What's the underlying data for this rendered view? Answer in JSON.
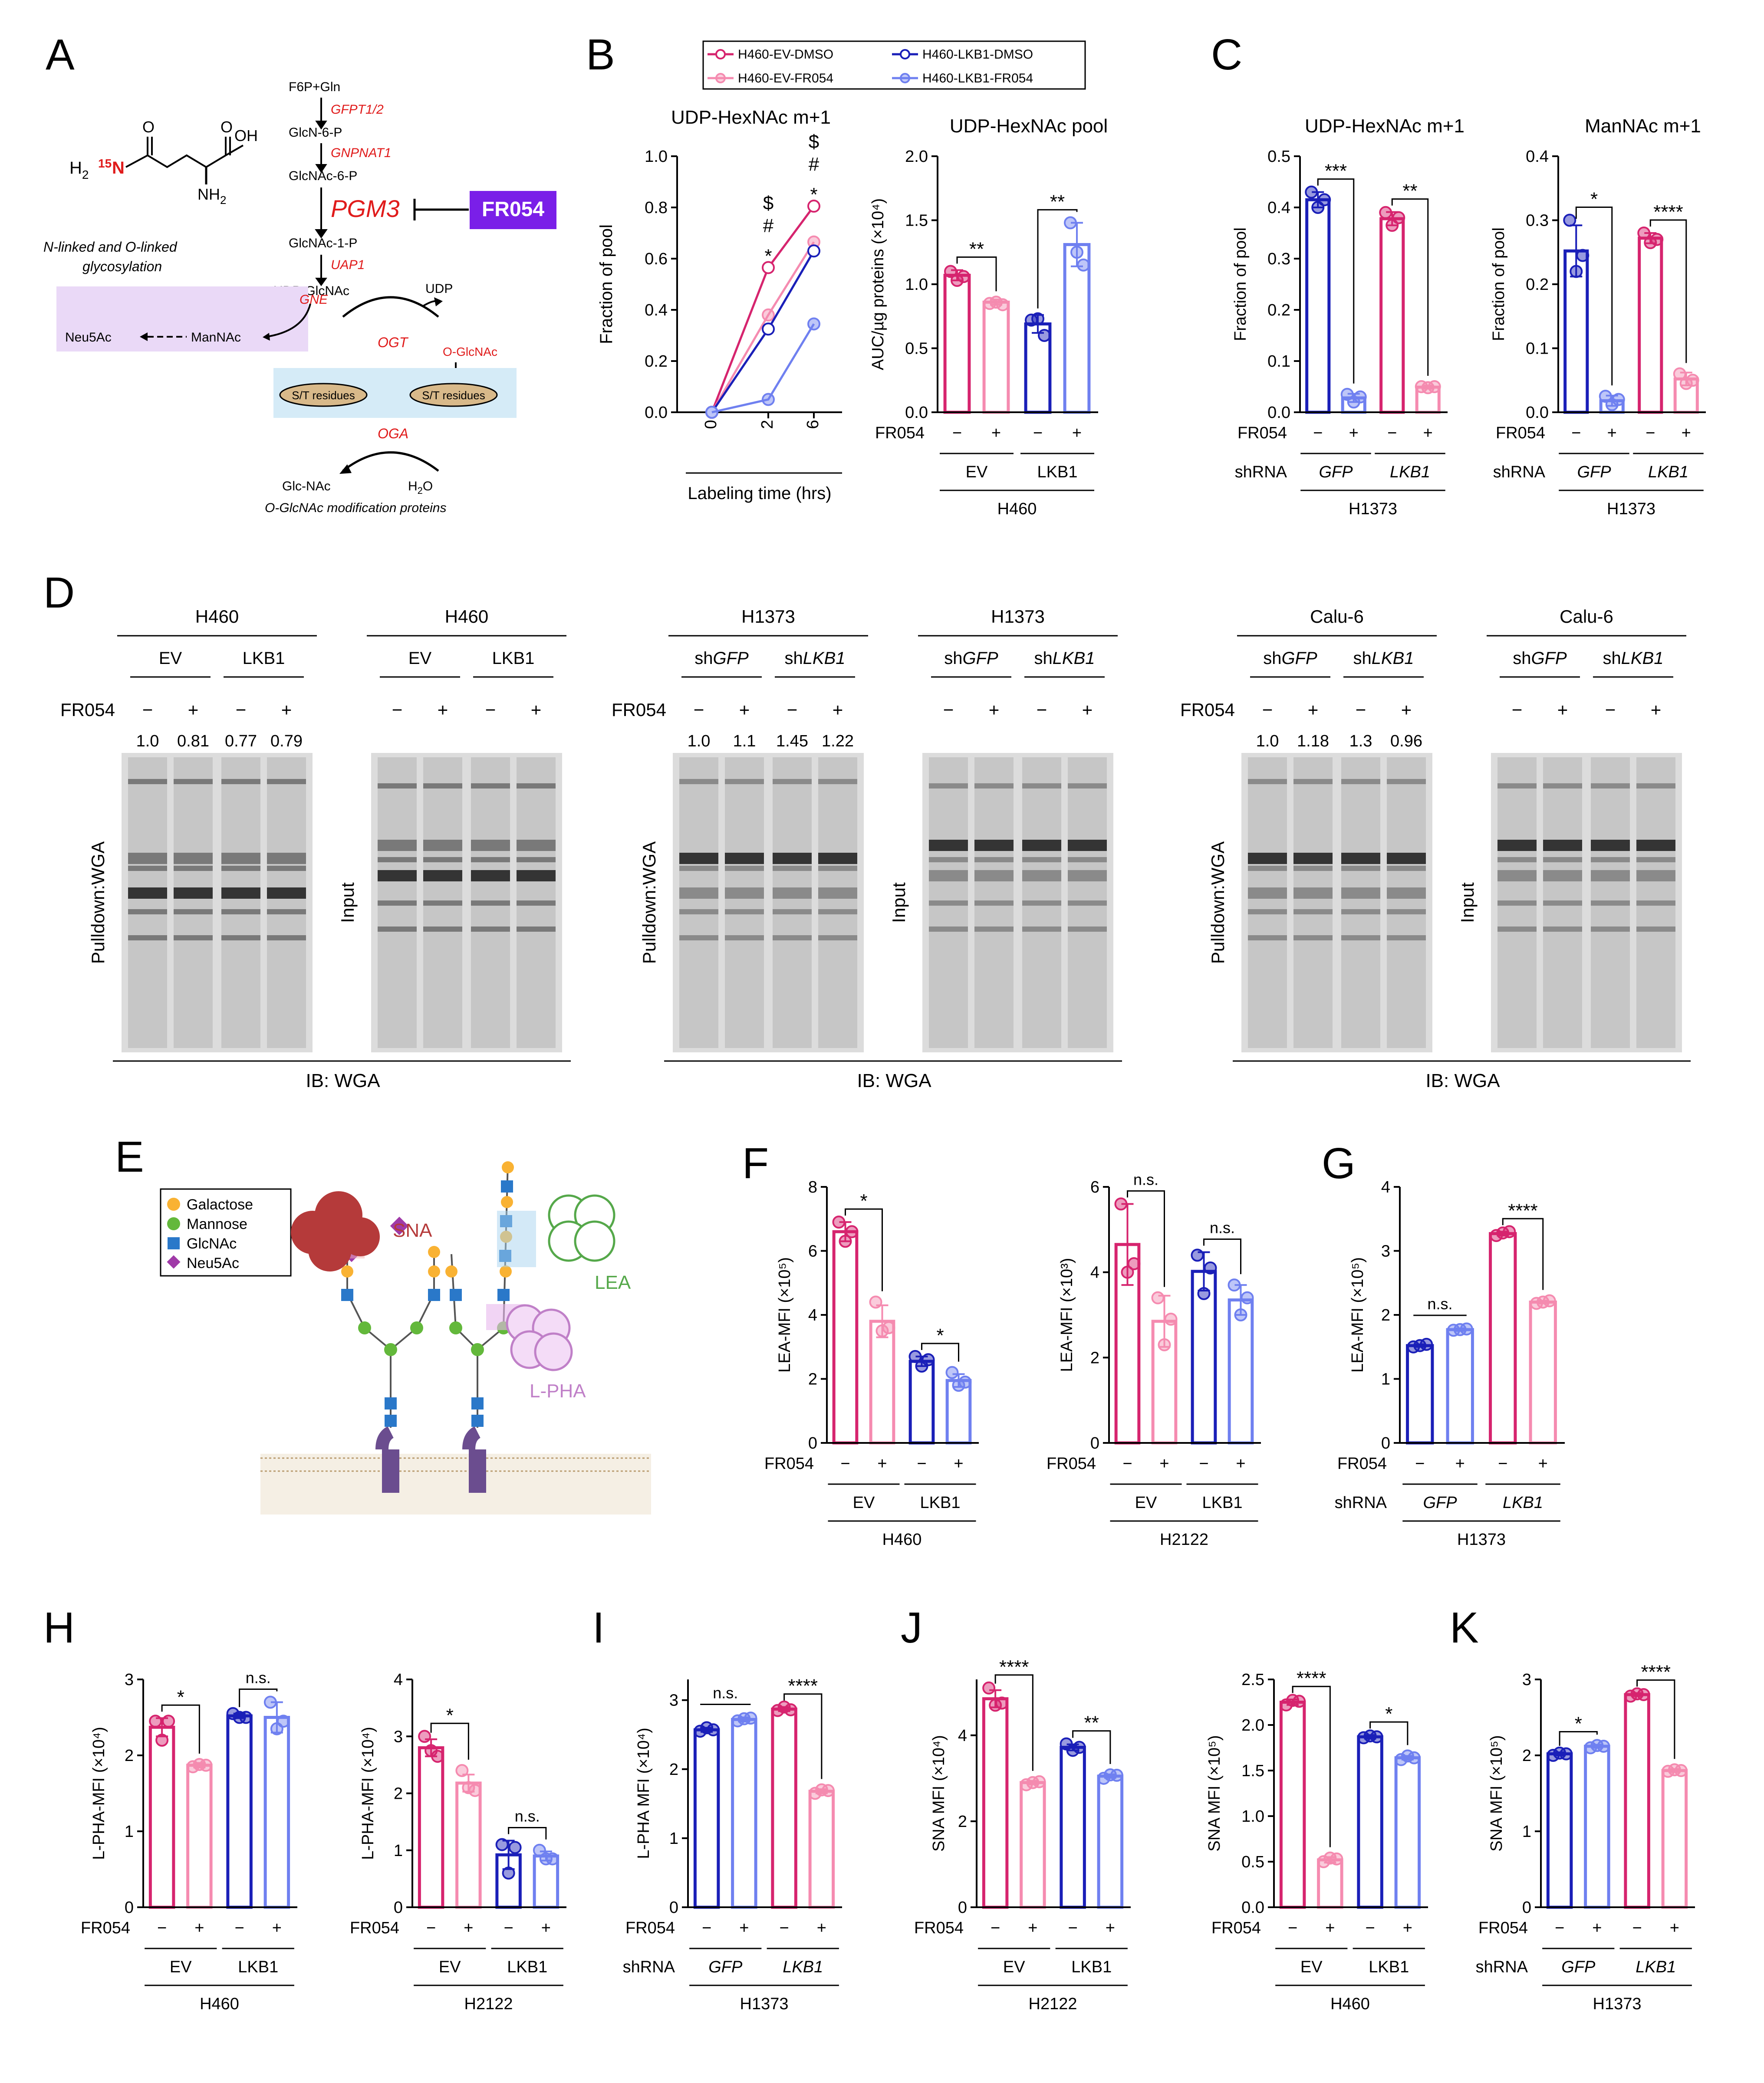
{
  "colors": {
    "dmso_ev": "#d6246e",
    "fr_ev": "#f58bb0",
    "dmso_lkb1": "#1a1fb8",
    "fr_lkb1": "#6f80f0",
    "fr054_box": "#7a1fe8",
    "pgm3": "#e01b1b",
    "enzyme": "#e01b1b",
    "box_pink": "#ead9f7",
    "box_blue": "#d5ebf7",
    "residue_fill": "#d8b98a"
  },
  "panelA": {
    "letter": "A",
    "glutamine": {
      "h2": "H",
      "sub2": "2",
      "n15": "15",
      "n": "N",
      "oh": "OH",
      "nh2": "NH",
      "nh2sub": "2",
      "o1": "O",
      "o2": "O"
    },
    "nodes": [
      "F6P+Gln",
      "GlcN-6-P",
      "GlcNAc-6-P",
      "GlcNAc-1-P",
      "UDP-GlcNAc"
    ],
    "enzymes": [
      "GFPT1/2",
      "GNPNAT1",
      "PGM3",
      "UAP1"
    ],
    "inhibitor": "FR054",
    "glyco_line1": "N-linked and O-linked",
    "glyco_line2": "glycosylation",
    "udp": "UDP",
    "gne": "GNE",
    "neu5ac": "Neu5Ac",
    "mannac": "ManNAc",
    "ogt": "OGT",
    "oga": "OGA",
    "oglcnac": "O-GlcNAc",
    "st1": "S/T residues",
    "st2": "S/T residues",
    "glcnac": "Glc-NAc",
    "h2o_h": "H",
    "h2o_2": "2",
    "h2o_o": "O",
    "footer": "O-GlcNAc modification proteins"
  },
  "panelD": {
    "letter": "D",
    "fr054": "FR054",
    "minus": "−",
    "plus": "+",
    "pulldown": "Pulldown:WGA",
    "input": "Input",
    "ib": "IB: WGA",
    "groups": [
      {
        "cell": "H460",
        "g1": "EV",
        "g2": "LKB1",
        "quant": [
          "1.0",
          "0.81",
          "0.77",
          "0.79"
        ]
      },
      {
        "cell": "H1373",
        "g1": "shGFP",
        "g2": "shLKB1",
        "g1_pre": "sh",
        "g1_it": "GFP",
        "g2_pre": "sh",
        "g2_it": "LKB1",
        "quant": [
          "1.0",
          "1.1",
          "1.45",
          "1.22"
        ]
      },
      {
        "cell": "Calu-6",
        "g1": "shGFP",
        "g2": "shLKB1",
        "g1_pre": "sh",
        "g1_it": "GFP",
        "g2_pre": "sh",
        "g2_it": "LKB1",
        "quant": [
          "1.0",
          "1.18",
          "1.3",
          "0.96"
        ]
      }
    ]
  },
  "panelE": {
    "letter": "E",
    "legend": [
      "Galactose",
      "Mannose",
      "GlcNAc",
      "Neu5Ac"
    ],
    "legend_colors": [
      "#f9b233",
      "#63b83b",
      "#2a78c9",
      "#a03aa8"
    ],
    "lectins": [
      "SNA",
      "LEA",
      "L-PHA"
    ],
    "lectin_colors": [
      "#b53a3a",
      "#55a84a",
      "#c080c8"
    ]
  },
  "chart_data": [
    {
      "panel": "B",
      "id": "B1",
      "type": "line",
      "title": "UDP-HexNAc m+1",
      "ylabel": "Fraction of pool",
      "xlabel": "Labeling time (hrs)",
      "x": [
        0,
        2,
        6
      ],
      "ylim": [
        0,
        1.0
      ],
      "yticks": [
        "0.0",
        "0.2",
        "0.4",
        "0.6",
        "0.8",
        "1.0"
      ],
      "series": [
        {
          "name": "H460-EV-DMSO",
          "values": [
            0,
            0.565,
            0.805
          ]
        },
        {
          "name": "H460-EV-FR054",
          "values": [
            0,
            0.38,
            0.665
          ]
        },
        {
          "name": "H460-LKB1-DMSO",
          "values": [
            0,
            0.325,
            0.63
          ]
        },
        {
          "name": "H460-LKB1-FR054",
          "values": [
            0,
            0.05,
            0.345
          ]
        }
      ],
      "annotations": {
        "t2": [
          "$",
          "#",
          "*"
        ],
        "t6": [
          "$",
          "#",
          "*"
        ]
      }
    },
    {
      "panel": "B",
      "id": "B2",
      "type": "bar",
      "title": "UDP-HexNAc pool",
      "ylabel": "AUC/µg proteins (×10⁴)",
      "ylim": [
        0,
        2.0
      ],
      "yticks": [
        "0.0",
        "0.5",
        "1.0",
        "1.5",
        "2.0"
      ],
      "values": [
        1.07,
        0.86,
        0.69,
        1.31
      ],
      "points": [
        [
          1.1,
          1.03,
          1.06
        ],
        [
          0.85,
          0.86,
          0.84
        ],
        [
          0.72,
          0.73,
          0.6
        ],
        [
          1.48,
          1.25,
          1.15
        ]
      ],
      "errors": [
        0.04,
        0.02,
        0.07,
        0.17
      ],
      "fr054": [
        "−",
        "+",
        "−",
        "+"
      ],
      "groups": [
        "EV",
        "LKB1"
      ],
      "cell": "H460",
      "sig": [
        "**",
        "**"
      ]
    },
    {
      "panel": "C",
      "id": "C1",
      "type": "bar",
      "title": "UDP-HexNAc m+1",
      "ylabel": "Fraction of pool",
      "ylim": [
        0,
        0.5
      ],
      "yticks": [
        "0.0",
        "0.1",
        "0.2",
        "0.3",
        "0.4",
        "0.5"
      ],
      "values": [
        0.415,
        0.028,
        0.378,
        0.049
      ],
      "points": [
        [
          0.43,
          0.4,
          0.415
        ],
        [
          0.035,
          0.02,
          0.03
        ],
        [
          0.39,
          0.365,
          0.38
        ],
        [
          0.05,
          0.048,
          0.05
        ]
      ],
      "errors": [
        0.015,
        0.008,
        0.013,
        0.003
      ],
      "fr054": [
        "−",
        "+",
        "−",
        "+"
      ],
      "shrna": [
        "GFP",
        "LKB1"
      ],
      "cell": "H1373",
      "sig": [
        "***",
        "**"
      ]
    },
    {
      "panel": "C",
      "id": "C2",
      "type": "bar",
      "title": "ManNAc m+1",
      "ylabel": "Fraction of pool",
      "ylim": [
        0,
        0.4
      ],
      "yticks": [
        "0.0",
        "0.1",
        "0.2",
        "0.3",
        "0.4"
      ],
      "values": [
        0.252,
        0.018,
        0.272,
        0.052
      ],
      "points": [
        [
          0.3,
          0.22,
          0.245
        ],
        [
          0.025,
          0.012,
          0.02
        ],
        [
          0.28,
          0.265,
          0.27
        ],
        [
          0.06,
          0.045,
          0.05
        ]
      ],
      "errors": [
        0.04,
        0.008,
        0.008,
        0.01
      ],
      "fr054": [
        "−",
        "+",
        "−",
        "+"
      ],
      "shrna": [
        "GFP",
        "LKB1"
      ],
      "cell": "H1373",
      "sig": [
        "*",
        "****"
      ]
    },
    {
      "panel": "F",
      "id": "F1",
      "type": "bar",
      "ylabel": "LEA-MFI (×10⁵)",
      "ylim": [
        0,
        8
      ],
      "yticks": [
        "0",
        "2",
        "4",
        "6",
        "8"
      ],
      "values": [
        6.6,
        3.8,
        2.55,
        1.95
      ],
      "points": [
        [
          6.9,
          6.3,
          6.6
        ],
        [
          4.4,
          3.5,
          3.6
        ],
        [
          2.7,
          2.4,
          2.6
        ],
        [
          2.2,
          1.8,
          1.9
        ]
      ],
      "errors": [
        0.3,
        0.5,
        0.15,
        0.2
      ],
      "fr054": [
        "−",
        "+",
        "−",
        "+"
      ],
      "groups": [
        "EV",
        "LKB1"
      ],
      "cell": "H460",
      "sig": [
        "*",
        "*"
      ]
    },
    {
      "panel": "F",
      "id": "F2",
      "type": "bar",
      "ylabel": "LEA-MFI (×10³)",
      "ylim": [
        0,
        6
      ],
      "yticks": [
        "0",
        "2",
        "4",
        "6"
      ],
      "values": [
        4.65,
        2.85,
        4.02,
        3.35
      ],
      "points": [
        [
          5.6,
          4.0,
          4.2
        ],
        [
          3.4,
          2.3,
          2.9
        ],
        [
          4.4,
          3.5,
          4.1
        ],
        [
          3.7,
          3.0,
          3.4
        ]
      ],
      "errors": [
        0.95,
        0.6,
        0.45,
        0.35
      ],
      "fr054": [
        "−",
        "+",
        "−",
        "+"
      ],
      "groups": [
        "EV",
        "LKB1"
      ],
      "cell": "H2122",
      "sig": [
        "n.s.",
        "n.s."
      ]
    },
    {
      "panel": "G",
      "id": "G",
      "type": "bar",
      "ylabel": "LEA-MFI (×10⁵)",
      "ylim": [
        0,
        4
      ],
      "yticks": [
        "0",
        "1",
        "2",
        "3",
        "4"
      ],
      "values": [
        1.52,
        1.77,
        3.27,
        2.2
      ],
      "points": [
        [
          1.5,
          1.52,
          1.54
        ],
        [
          1.76,
          1.77,
          1.78
        ],
        [
          3.24,
          3.28,
          3.3
        ],
        [
          2.18,
          2.2,
          2.22
        ]
      ],
      "errors": [
        0.02,
        0.02,
        0.03,
        0.02
      ],
      "fr054": [
        "−",
        "+",
        "−",
        "+"
      ],
      "shrna": [
        "GFP",
        "LKB1"
      ],
      "cell": "H1373",
      "sig": [
        "n.s.",
        "****"
      ]
    },
    {
      "panel": "H",
      "id": "H1",
      "type": "bar",
      "ylabel": "L-PHA-MFI (×10⁴)",
      "ylim": [
        0,
        3
      ],
      "yticks": [
        "0",
        "1",
        "2",
        "3"
      ],
      "values": [
        2.37,
        1.87,
        2.52,
        2.5
      ],
      "points": [
        [
          2.45,
          2.2,
          2.45
        ],
        [
          1.85,
          1.88,
          1.87
        ],
        [
          2.55,
          2.5,
          2.5
        ],
        [
          2.7,
          2.35,
          2.45
        ]
      ],
      "errors": [
        0.12,
        0.03,
        0.03,
        0.2
      ],
      "fr054": [
        "−",
        "+",
        "−",
        "+"
      ],
      "groups": [
        "EV",
        "LKB1"
      ],
      "cell": "H460",
      "sig": [
        "*",
        "n.s."
      ]
    },
    {
      "panel": "H",
      "id": "H2",
      "type": "bar",
      "ylabel": "L-PHA-MFI (×10⁴)",
      "ylim": [
        0,
        4
      ],
      "yticks": [
        "0",
        "1",
        "2",
        "3",
        "4"
      ],
      "values": [
        2.8,
        2.18,
        0.92,
        0.9
      ],
      "points": [
        [
          3.0,
          2.75,
          2.65
        ],
        [
          2.4,
          2.1,
          2.05
        ],
        [
          1.1,
          0.6,
          1.05
        ],
        [
          1.0,
          0.85,
          0.85
        ]
      ],
      "errors": [
        0.15,
        0.15,
        0.25,
        0.08
      ],
      "fr054": [
        "−",
        "+",
        "−",
        "+"
      ],
      "groups": [
        "EV",
        "LKB1"
      ],
      "cell": "H2122",
      "sig": [
        "*",
        "n.s."
      ]
    },
    {
      "panel": "I",
      "id": "I",
      "type": "bar",
      "ylabel": "L-PHA MFI (×10⁴)",
      "ylim": [
        0,
        3.3
      ],
      "yticks": [
        "0",
        "1",
        "2",
        "3"
      ],
      "values": [
        2.57,
        2.72,
        2.87,
        1.68
      ],
      "points": [
        [
          2.55,
          2.6,
          2.57
        ],
        [
          2.7,
          2.73,
          2.74
        ],
        [
          2.85,
          2.9,
          2.86
        ],
        [
          1.65,
          1.7,
          1.69
        ]
      ],
      "errors": [
        0.03,
        0.03,
        0.03,
        0.03
      ],
      "fr054": [
        "−",
        "+",
        "−",
        "+"
      ],
      "shrna": [
        "GFP",
        "LKB1"
      ],
      "cell": "H1373",
      "sig": [
        "n.s.",
        "****"
      ]
    },
    {
      "panel": "J",
      "id": "J1",
      "type": "bar",
      "ylabel": "SNA MFI (×10⁴)",
      "ylim": [
        0,
        5.3
      ],
      "yticks": [
        "0",
        "2",
        "4"
      ],
      "values": [
        4.85,
        2.9,
        3.72,
        3.05
      ],
      "points": [
        [
          5.1,
          4.7,
          4.75
        ],
        [
          2.85,
          2.9,
          2.92
        ],
        [
          3.8,
          3.65,
          3.72
        ],
        [
          3.0,
          3.08,
          3.07
        ]
      ],
      "errors": [
        0.2,
        0.04,
        0.07,
        0.04
      ],
      "fr054": [
        "−",
        "+",
        "−",
        "+"
      ],
      "groups": [
        "EV",
        "LKB1"
      ],
      "cell": "H2122",
      "sig": [
        "****",
        "**"
      ]
    },
    {
      "panel": "J",
      "id": "J2",
      "type": "bar",
      "ylabel": "SNA MFI (×10⁵)",
      "ylim": [
        0,
        2.5
      ],
      "yticks": [
        "0.0",
        "0.5",
        "1.0",
        "1.5",
        "2.0",
        "2.5"
      ],
      "values": [
        2.25,
        0.52,
        1.87,
        1.64
      ],
      "points": [
        [
          2.22,
          2.27,
          2.26
        ],
        [
          0.5,
          0.54,
          0.53
        ],
        [
          1.86,
          1.88,
          1.87
        ],
        [
          1.62,
          1.66,
          1.64
        ]
      ],
      "errors": [
        0.03,
        0.03,
        0.02,
        0.02
      ],
      "fr054": [
        "−",
        "+",
        "−",
        "+"
      ],
      "groups": [
        "EV",
        "LKB1"
      ],
      "cell": "H460",
      "sig": [
        "****",
        "*"
      ]
    },
    {
      "panel": "K",
      "id": "K",
      "type": "bar",
      "ylabel": "SNA MFI (×10⁵)",
      "ylim": [
        0,
        3
      ],
      "yticks": [
        "0",
        "1",
        "2",
        "3"
      ],
      "values": [
        2.02,
        2.12,
        2.8,
        1.8
      ],
      "points": [
        [
          2.0,
          2.03,
          2.02
        ],
        [
          2.1,
          2.13,
          2.12
        ],
        [
          2.78,
          2.81,
          2.8
        ],
        [
          1.79,
          1.81,
          1.8
        ]
      ],
      "errors": [
        0.02,
        0.02,
        0.02,
        0.02
      ],
      "fr054": [
        "−",
        "+",
        "−",
        "+"
      ],
      "shrna": [
        "GFP",
        "LKB1"
      ],
      "cell": "H1373",
      "sig": [
        "*",
        "****"
      ]
    }
  ],
  "labels": {
    "fr054": "FR054",
    "shrna": "shRNA",
    "B": "B",
    "C": "C",
    "F": "F",
    "G": "G",
    "H": "H",
    "I": "I",
    "J": "J",
    "K": "K"
  }
}
